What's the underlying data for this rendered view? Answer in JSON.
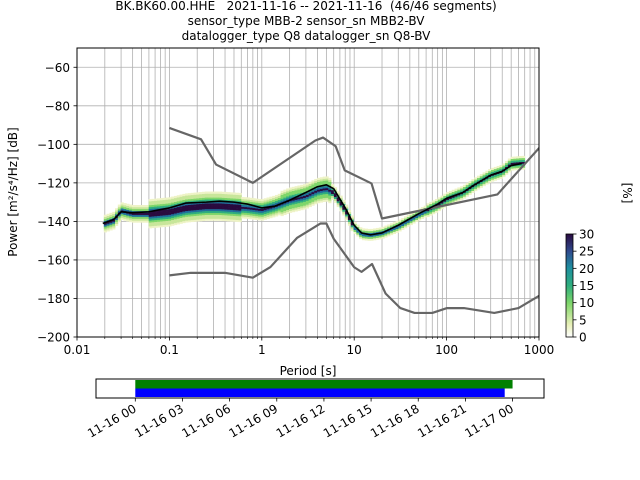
{
  "title": {
    "line1": "BK.BK60.00.HHE   2021-11-16 -- 2021-11-16  (46/46 segments)",
    "line2": "sensor_type MBB-2 sensor_sn MBB2-BV",
    "line3": "datalogger_type Q8 datalogger_sn Q8-BV"
  },
  "chart_data": [
    {
      "type": "heatmap",
      "xlabel": "Period [s]",
      "ylabel": "Power [m²/s⁴/Hz] [dB]",
      "x_scale": "log",
      "xlim": [
        0.01,
        1000
      ],
      "ylim": [
        -200,
        -50
      ],
      "x_ticks": [
        0.01,
        0.1,
        1,
        10,
        100,
        1000
      ],
      "x_tick_labels": [
        "0.01",
        "0.1",
        "1",
        "10",
        "100",
        "1000"
      ],
      "y_ticks": [
        -200,
        -180,
        -160,
        -140,
        -120,
        -100,
        -80,
        -60
      ],
      "y_tick_labels": [
        "−200",
        "−180",
        "−160",
        "−140",
        "−120",
        "−100",
        "−80",
        "−60"
      ],
      "grid": true,
      "colorbar": {
        "label": "[%]",
        "ticks": [
          0,
          5,
          10,
          15,
          20,
          25,
          30
        ],
        "tick_labels": [
          "0",
          "5",
          "10",
          "15",
          "20",
          "25",
          "30"
        ],
        "range": [
          0,
          30
        ],
        "colormap": "pqlx"
      },
      "series": [
        {
          "role": "model-high",
          "color": "#666666",
          "period": [
            0.1,
            0.22,
            0.32,
            0.8,
            3.8,
            4.6,
            6.3,
            7.9,
            15.4,
            20,
            354.8,
            10000
          ],
          "db": [
            -91.5,
            -97.4,
            -110.5,
            -120,
            -98,
            -96.5,
            -101,
            -113.5,
            -120.3,
            -138.5,
            -126,
            -48.5
          ]
        },
        {
          "role": "model-low",
          "color": "#666666",
          "period": [
            0.1,
            0.17,
            0.4,
            0.8,
            1.24,
            2.4,
            4.3,
            5,
            6,
            10,
            12,
            15.6,
            21.9,
            31.6,
            45,
            70,
            101,
            154,
            328,
            600,
            10000
          ],
          "db": [
            -168,
            -166.7,
            -166.7,
            -169.2,
            -163.7,
            -148.6,
            -141.1,
            -141.1,
            -149,
            -163.8,
            -166.2,
            -162.1,
            -177.5,
            -185,
            -187.5,
            -187.5,
            -185,
            -185,
            -187.5,
            -185,
            -150
          ]
        },
        {
          "role": "mean",
          "color": "#000000",
          "period": [
            0.019,
            0.025,
            0.03,
            0.04,
            0.06,
            0.1,
            0.15,
            0.25,
            0.35,
            0.5,
            0.7,
            1,
            1.4,
            2,
            3,
            4,
            5,
            6,
            8,
            10,
            12,
            15,
            20,
            30,
            50,
            80,
            100,
            150,
            200,
            300,
            400,
            500,
            650
          ],
          "db": [
            -141,
            -139,
            -135,
            -135.5,
            -135,
            -133,
            -130.5,
            -130,
            -129.5,
            -130,
            -131,
            -133,
            -132,
            -129,
            -125,
            -122,
            -121,
            -123,
            -133,
            -142,
            -146,
            -147,
            -146,
            -142,
            -136,
            -131,
            -128,
            -125,
            -121,
            -116,
            -114,
            -111,
            -110
          ]
        },
        {
          "role": "mode",
          "color": "#2a0a3f",
          "period": [
            0.019,
            0.025,
            0.03,
            0.04,
            0.06,
            0.1,
            0.15,
            0.25,
            0.35,
            0.5,
            0.7,
            1,
            1.4,
            2,
            3,
            4,
            5,
            6,
            8,
            10,
            12,
            15,
            20,
            30,
            50,
            80,
            100,
            150,
            200,
            300,
            400,
            500,
            650
          ],
          "db": [
            -141.5,
            -139.5,
            -134.5,
            -136,
            -136,
            -135,
            -133,
            -132,
            -132,
            -132.5,
            -133,
            -134,
            -132,
            -129,
            -127,
            -124,
            -123,
            -125,
            -134,
            -143,
            -146.5,
            -147,
            -146,
            -142.5,
            -136.5,
            -131.5,
            -128.5,
            -125,
            -121,
            -116,
            -114,
            -110,
            -109.5
          ]
        }
      ]
    },
    {
      "type": "timeline",
      "x_tick_labels": [
        "11-16 00",
        "11-16 03",
        "11-16 06",
        "11-16 09",
        "11-16 12",
        "11-16 15",
        "11-16 18",
        "11-16 21",
        "11-17 00"
      ],
      "xlim": [
        "2021-11-15T21:30",
        "2021-11-17T02:00"
      ],
      "series": [
        {
          "role": "data",
          "color": "#008000",
          "start": "2021-11-16T00:00",
          "end": "2021-11-17T00:00"
        },
        {
          "role": "psd",
          "color": "#0000ff",
          "start": "2021-11-16T00:00",
          "end": "2021-11-16T23:30"
        }
      ]
    }
  ]
}
